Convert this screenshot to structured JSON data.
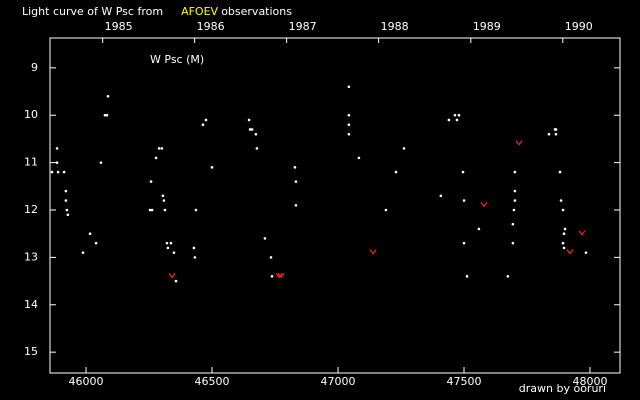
{
  "chart_data": {
    "type": "scatter",
    "title": {
      "prefix": "Light curve of W Psc from",
      "source": "AFOEV",
      "suffix": "observations",
      "source_color": "#ffff00"
    },
    "credit": "drawn by ooruri",
    "credit_color": "#00e0e0",
    "xlim": [
      45857,
      48119
    ],
    "xticks": [
      46000,
      46500,
      47000,
      47500,
      48000
    ],
    "x2ticks": [
      {
        "value": 46066,
        "label": "1985"
      },
      {
        "value": 46431,
        "label": "1986"
      },
      {
        "value": 46796,
        "label": "1987"
      },
      {
        "value": 47161,
        "label": "1988"
      },
      {
        "value": 47527,
        "label": "1989"
      },
      {
        "value": 47892,
        "label": "1990"
      }
    ],
    "ylim": [
      15.44,
      8.37
    ],
    "yticks": [
      9,
      10,
      11,
      12,
      13,
      14,
      15
    ],
    "series": [
      {
        "name": "W Psc (M)",
        "color": "#ffffff",
        "marker": "dot",
        "x": [
          45865,
          45885,
          45885,
          45889,
          45913,
          45920,
          45920,
          45924,
          45928,
          45988,
          46016,
          46040,
          46059,
          46075,
          46083,
          46087,
          46258,
          46262,
          46254,
          46278,
          46290,
          46301,
          46305,
          46309,
          46313,
          46321,
          46325,
          46337,
          46349,
          46357,
          46428,
          46432,
          46436,
          46464,
          46476,
          46500,
          46647,
          46651,
          46659,
          46674,
          46678,
          46710,
          46734,
          46738,
          46829,
          46833,
          46833,
          47043,
          47043,
          47043,
          47043,
          47083,
          47190,
          47230,
          47262,
          47408,
          47440,
          47464,
          47472,
          47480,
          47496,
          47500,
          47500,
          47512,
          47559,
          47674,
          47694,
          47694,
          47698,
          47702,
          47702,
          47702,
          47837,
          47861,
          47865,
          47865,
          47881,
          47885,
          47893,
          47901,
          47893,
          47897,
          47897,
          47984
        ],
        "values": [
          11.2,
          11.0,
          10.7,
          11.2,
          11.2,
          11.6,
          11.8,
          12.0,
          12.1,
          12.9,
          12.5,
          12.7,
          11.0,
          10.0,
          10.0,
          9.6,
          11.4,
          12.0,
          12.0,
          10.9,
          10.7,
          10.7,
          11.7,
          11.8,
          12.0,
          12.7,
          12.8,
          12.7,
          12.9,
          13.5,
          12.8,
          13.0,
          12.0,
          10.2,
          10.1,
          11.1,
          10.1,
          10.3,
          10.3,
          10.4,
          10.7,
          12.6,
          13.0,
          13.4,
          11.1,
          11.4,
          11.9,
          9.4,
          10.0,
          10.2,
          10.4,
          10.9,
          12.0,
          11.2,
          10.7,
          11.7,
          10.1,
          10.0,
          10.1,
          10.0,
          11.2,
          11.8,
          12.7,
          13.4,
          12.4,
          13.4,
          12.7,
          12.3,
          12.0,
          11.8,
          11.6,
          11.2,
          10.4,
          10.3,
          10.4,
          10.3,
          11.2,
          11.8,
          12.0,
          12.4,
          12.7,
          12.8,
          12.5,
          12.9
        ]
      },
      {
        "color": "#ff2020",
        "marker": "v",
        "x": [
          46341,
          46766,
          46774,
          47139,
          47579,
          47718,
          47920,
          47968
        ],
        "values": [
          13.4,
          13.4,
          13.4,
          12.9,
          11.9,
          10.6,
          12.9,
          12.5
        ]
      }
    ]
  }
}
